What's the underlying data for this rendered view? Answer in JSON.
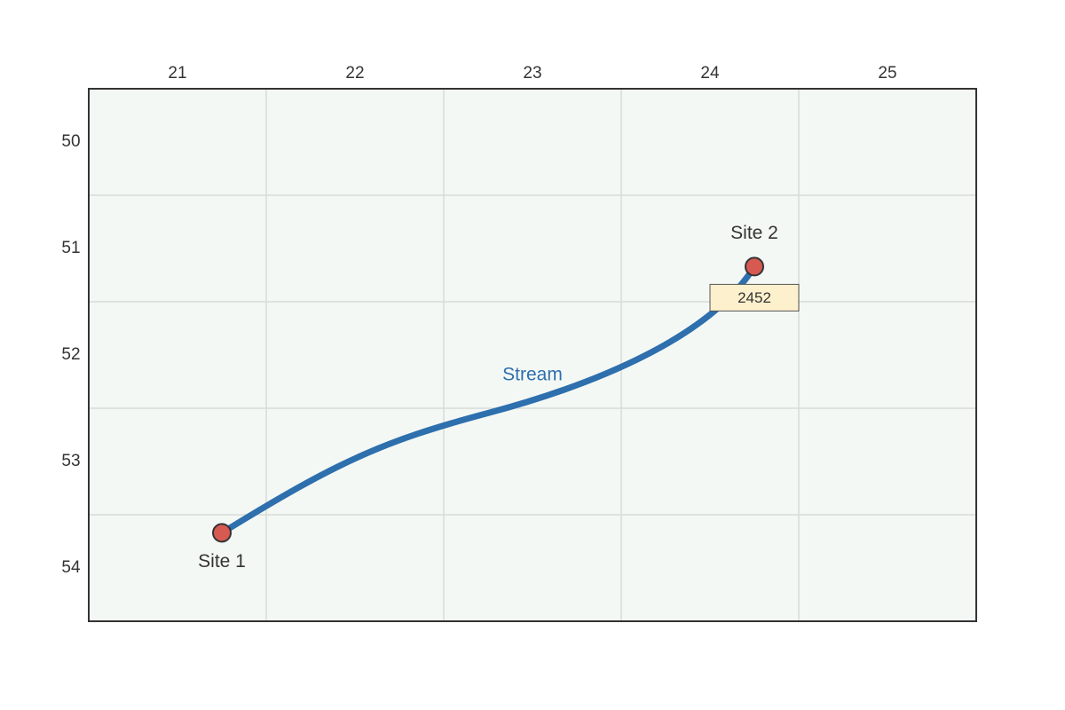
{
  "map": {
    "columns": [
      21,
      22,
      23,
      24,
      25
    ],
    "rows": [
      50,
      51,
      52,
      53,
      54
    ],
    "sites": [
      {
        "label": "Site 1",
        "x": 21.25,
        "y": 53.67
      },
      {
        "label": "Site 2",
        "x": 24.25,
        "y": 51.17
      }
    ],
    "stream": {
      "label": "Stream",
      "marker": "2452"
    }
  }
}
